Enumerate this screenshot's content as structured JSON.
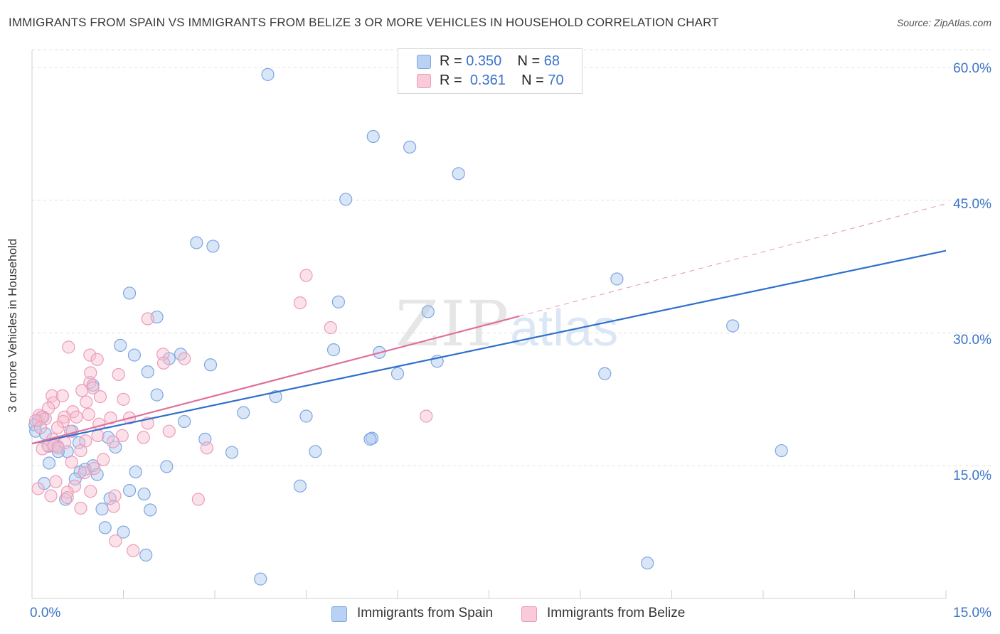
{
  "header": {
    "title": "IMMIGRANTS FROM SPAIN VS IMMIGRANTS FROM BELIZE 3 OR MORE VEHICLES IN HOUSEHOLD CORRELATION CHART",
    "source": "Source: ZipAtlas.com"
  },
  "watermark": {
    "zip": "ZIP",
    "atlas": "atlas"
  },
  "legend": {
    "spain": {
      "r_label": "R =",
      "r_value": "0.350",
      "n_label": "N =",
      "n_value": "68"
    },
    "belize": {
      "r_label": "R =",
      "r_value": "0.361",
      "n_label": "N =",
      "n_value": "70"
    }
  },
  "colors": {
    "spain_fill": "#a9c7f0",
    "spain_stroke": "#7ea6e0",
    "spain_line": "#2f6fcc",
    "belize_fill": "#f7bfd1",
    "belize_stroke": "#ee9ab6",
    "belize_line": "#e0709a",
    "grid": "#e0e0e0",
    "tick_label": "#3b73c9"
  },
  "chart_data": {
    "type": "scatter",
    "title": "IMMIGRANTS FROM SPAIN VS IMMIGRANTS FROM BELIZE 3 OR MORE VEHICLES IN HOUSEHOLD CORRELATION CHART",
    "xlabel": "",
    "ylabel": "3 or more Vehicles in Household",
    "xlim": [
      0,
      15
    ],
    "ylim": [
      0,
      62
    ],
    "x_tick_labels": [
      "0.0%",
      "15.0%"
    ],
    "y_ticks": [
      15,
      30,
      45,
      60
    ],
    "y_tick_labels": [
      "15.0%",
      "30.0%",
      "45.0%",
      "60.0%"
    ],
    "grid": "horizontal dashed",
    "legend_position": "top-center",
    "series": [
      {
        "name": "Immigrants from Spain",
        "r": 0.35,
        "n": 68,
        "trend": {
          "x": [
            0,
            15
          ],
          "y": [
            17.5,
            39.3
          ],
          "style": "solid"
        },
        "points": [
          [
            3.87,
            59.2
          ],
          [
            5.6,
            52.2
          ],
          [
            6.2,
            51
          ],
          [
            7.0,
            48
          ],
          [
            5.15,
            45.1
          ],
          [
            2.7,
            40.2
          ],
          [
            2.97,
            39.8
          ],
          [
            9.6,
            36.1
          ],
          [
            1.6,
            34.5
          ],
          [
            5.03,
            33.5
          ],
          [
            6.5,
            32.4
          ],
          [
            2.05,
            31.8
          ],
          [
            11.5,
            30.8
          ],
          [
            1.45,
            28.6
          ],
          [
            4.95,
            28.1
          ],
          [
            5.7,
            27.8
          ],
          [
            1.68,
            27.5
          ],
          [
            2.44,
            27.6
          ],
          [
            2.25,
            27.1
          ],
          [
            6.65,
            26.8
          ],
          [
            2.93,
            26.4
          ],
          [
            1.9,
            25.6
          ],
          [
            6.0,
            25.4
          ],
          [
            9.4,
            25.4
          ],
          [
            1.0,
            24.1
          ],
          [
            2.05,
            23
          ],
          [
            4.0,
            22.8
          ],
          [
            3.47,
            21
          ],
          [
            4.5,
            20.6
          ],
          [
            2.5,
            20
          ],
          [
            0.1,
            20.1
          ],
          [
            0.18,
            20.5
          ],
          [
            0.05,
            19.6
          ],
          [
            0.06,
            18.9
          ],
          [
            0.22,
            18.6
          ],
          [
            0.66,
            18.9
          ],
          [
            1.25,
            18.2
          ],
          [
            2.84,
            18.0
          ],
          [
            5.58,
            18.1
          ],
          [
            5.55,
            18.0
          ],
          [
            0.77,
            17.6
          ],
          [
            0.42,
            17.2
          ],
          [
            0.27,
            17.2
          ],
          [
            1.37,
            17.1
          ],
          [
            0.58,
            16.6
          ],
          [
            0.43,
            16.6
          ],
          [
            3.28,
            16.5
          ],
          [
            4.65,
            16.6
          ],
          [
            12.3,
            16.7
          ],
          [
            0.28,
            15.3
          ],
          [
            2.21,
            14.9
          ],
          [
            1.0,
            15
          ],
          [
            0.87,
            14.6
          ],
          [
            0.79,
            14.3
          ],
          [
            1.07,
            14.0
          ],
          [
            1.7,
            14.3
          ],
          [
            0.71,
            13.5
          ],
          [
            0.2,
            13.0
          ],
          [
            4.4,
            12.7
          ],
          [
            1.6,
            12.2
          ],
          [
            1.84,
            11.8
          ],
          [
            0.55,
            11.2
          ],
          [
            1.28,
            11.3
          ],
          [
            1.15,
            10.1
          ],
          [
            1.94,
            10.0
          ],
          [
            1.2,
            8.0
          ],
          [
            1.5,
            7.5
          ],
          [
            1.87,
            4.9
          ],
          [
            10.1,
            4.0
          ],
          [
            3.75,
            2.2
          ]
        ]
      },
      {
        "name": "Immigrants from Belize",
        "r": 0.361,
        "n": 70,
        "trend": {
          "x": [
            0,
            8.0
          ],
          "y": [
            17.5,
            31.9
          ],
          "style": "solid",
          "extension": {
            "x": [
              8.0,
              15
            ],
            "y": [
              31.9,
              44.6
            ],
            "style": "dashed"
          }
        },
        "points": [
          [
            4.5,
            36.5
          ],
          [
            4.4,
            33.4
          ],
          [
            1.9,
            31.6
          ],
          [
            4.9,
            30.6
          ],
          [
            0.6,
            28.4
          ],
          [
            0.95,
            27.5
          ],
          [
            1.07,
            27.0
          ],
          [
            2.15,
            27.6
          ],
          [
            2.5,
            27.1
          ],
          [
            2.16,
            26.6
          ],
          [
            1.42,
            25.3
          ],
          [
            0.96,
            25.5
          ],
          [
            0.95,
            24.4
          ],
          [
            1.0,
            23.8
          ],
          [
            0.82,
            23.5
          ],
          [
            0.33,
            22.9
          ],
          [
            0.5,
            22.9
          ],
          [
            1.12,
            22.8
          ],
          [
            1.5,
            22.5
          ],
          [
            0.35,
            22.1
          ],
          [
            0.89,
            22.2
          ],
          [
            0.27,
            21.5
          ],
          [
            0.67,
            21.1
          ],
          [
            0.93,
            20.8
          ],
          [
            0.53,
            20.5
          ],
          [
            1.29,
            20.4
          ],
          [
            1.6,
            20.4
          ],
          [
            6.47,
            20.6
          ],
          [
            0.73,
            20.5
          ],
          [
            0.12,
            20.7
          ],
          [
            0.16,
            20.5
          ],
          [
            0.22,
            20.3
          ],
          [
            0.51,
            20.0
          ],
          [
            0.06,
            20.1
          ],
          [
            1.1,
            19.7
          ],
          [
            1.9,
            19.8
          ],
          [
            0.14,
            19.3
          ],
          [
            0.42,
            19.3
          ],
          [
            2.25,
            18.9
          ],
          [
            0.63,
            18.9
          ],
          [
            1.08,
            18.4
          ],
          [
            0.34,
            18.0
          ],
          [
            1.48,
            18.4
          ],
          [
            1.83,
            18.2
          ],
          [
            0.88,
            17.8
          ],
          [
            0.54,
            17.6
          ],
          [
            1.33,
            17.7
          ],
          [
            0.26,
            17.3
          ],
          [
            0.36,
            17.3
          ],
          [
            0.17,
            16.9
          ],
          [
            2.87,
            17.0
          ],
          [
            0.43,
            17.0
          ],
          [
            0.8,
            16.7
          ],
          [
            1.17,
            15.7
          ],
          [
            0.65,
            15.4
          ],
          [
            1.02,
            14.7
          ],
          [
            0.86,
            14.2
          ],
          [
            0.39,
            13.2
          ],
          [
            0.7,
            12.7
          ],
          [
            0.1,
            12.4
          ],
          [
            0.96,
            12.1
          ],
          [
            0.58,
            12.0
          ],
          [
            0.31,
            11.6
          ],
          [
            1.36,
            11.6
          ],
          [
            0.58,
            11.4
          ],
          [
            2.73,
            11.2
          ],
          [
            0.8,
            10.2
          ],
          [
            1.34,
            10.4
          ],
          [
            1.37,
            6.5
          ],
          [
            1.66,
            5.4
          ]
        ]
      }
    ]
  },
  "bottom_legend": {
    "spain": "Immigrants from Spain",
    "belize": "Immigrants from Belize"
  }
}
